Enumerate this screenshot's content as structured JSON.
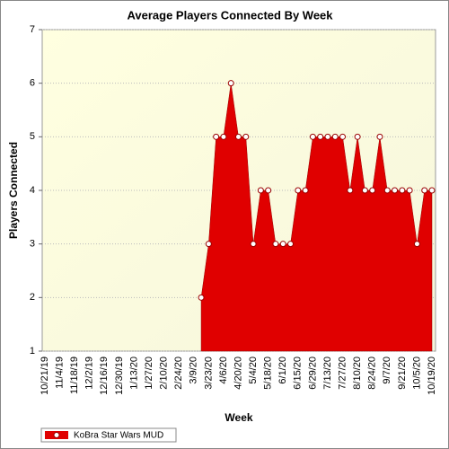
{
  "chart_data": {
    "type": "area",
    "title": "Average Players Connected By Week",
    "x_label": "Week",
    "y_label": "Players Connected",
    "categories": [
      "10/21/19",
      null,
      "11/4/19",
      null,
      "11/18/19",
      null,
      "12/2/19",
      null,
      "12/16/19",
      null,
      "12/30/19",
      null,
      "1/13/20",
      null,
      "1/27/20",
      null,
      "2/10/20",
      null,
      "2/24/20",
      null,
      "3/9/20",
      null,
      "3/23/20",
      null,
      "4/6/20",
      null,
      "4/20/20",
      null,
      "5/4/20",
      null,
      "5/18/20",
      null,
      "6/1/20",
      null,
      "6/15/20",
      null,
      "6/29/20",
      null,
      "7/13/20",
      null,
      "7/27/20",
      null,
      "8/10/20",
      null,
      "8/24/20",
      null,
      "9/7/20",
      null,
      "9/21/20",
      null,
      "10/5/20",
      null,
      "10/19/20"
    ],
    "series": [
      {
        "name": "KoBra Star Wars MUD",
        "color": "#e00000",
        "values": [
          null,
          null,
          null,
          null,
          null,
          null,
          null,
          null,
          null,
          null,
          null,
          null,
          null,
          null,
          null,
          null,
          null,
          null,
          null,
          null,
          null,
          2,
          3,
          5,
          5,
          6,
          5,
          5,
          3,
          4,
          4,
          3,
          3,
          3,
          4,
          4,
          5,
          5,
          5,
          5,
          5,
          4,
          5,
          4,
          4,
          5,
          4,
          4,
          4,
          4,
          3,
          4,
          4
        ]
      }
    ],
    "ylim": [
      1,
      7
    ],
    "yticks": [
      1,
      2,
      3,
      4,
      5,
      6,
      7
    ],
    "grid": true
  }
}
